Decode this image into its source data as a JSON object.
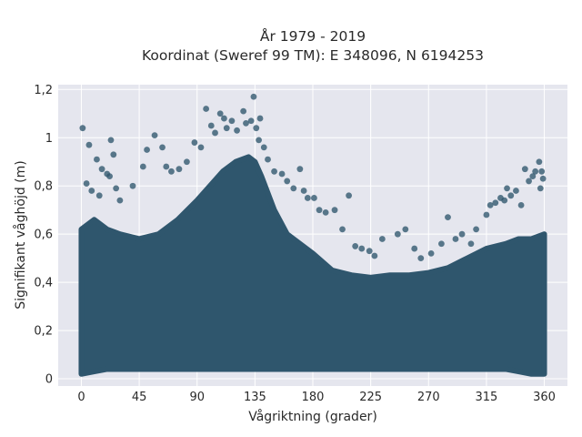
{
  "chart_data": {
    "type": "scatter",
    "title": [
      "År 1979 - 2019",
      "Koordinat (Sweref 99 TM): E 348096, N 6194253"
    ],
    "xlabel": "Vågriktning (grader)",
    "ylabel": "Signifikant våghöjd (m)",
    "xlim": [
      -18,
      378
    ],
    "ylim": [
      -0.03,
      1.22
    ],
    "xticks": [
      0,
      45,
      90,
      135,
      180,
      225,
      270,
      315,
      360
    ],
    "xtick_labels": [
      "0",
      "45",
      "90",
      "135",
      "180",
      "225",
      "270",
      "315",
      "360"
    ],
    "yticks": [
      0,
      0.2,
      0.4,
      0.6,
      0.8,
      1,
      1.2
    ],
    "ytick_labels": [
      "0",
      "0,2",
      "0,4",
      "0,6",
      "0,8",
      "1",
      "1,2"
    ],
    "grid": true,
    "legend": false,
    "marker_color": "#2f566d",
    "background_color": "#e5e6ee",
    "envelope": {
      "x": [
        0,
        10,
        20,
        30,
        45,
        60,
        75,
        90,
        100,
        110,
        120,
        130,
        135,
        140,
        150,
        160,
        170,
        180,
        195,
        210,
        225,
        240,
        255,
        270,
        285,
        300,
        315,
        330,
        340,
        350,
        360
      ],
      "y_upper": [
        0.62,
        0.66,
        0.62,
        0.6,
        0.58,
        0.6,
        0.66,
        0.74,
        0.8,
        0.86,
        0.9,
        0.92,
        0.9,
        0.84,
        0.7,
        0.6,
        0.56,
        0.52,
        0.45,
        0.43,
        0.42,
        0.43,
        0.43,
        0.44,
        0.46,
        0.5,
        0.54,
        0.56,
        0.58,
        0.58,
        0.6
      ],
      "y_lower": [
        0.02,
        0.03,
        0.04,
        0.04,
        0.04,
        0.04,
        0.04,
        0.04,
        0.04,
        0.04,
        0.04,
        0.04,
        0.04,
        0.04,
        0.04,
        0.04,
        0.04,
        0.04,
        0.04,
        0.04,
        0.04,
        0.04,
        0.04,
        0.04,
        0.04,
        0.04,
        0.04,
        0.04,
        0.03,
        0.02,
        0.02
      ]
    },
    "points": [
      [
        1,
        1.04
      ],
      [
        6,
        0.97
      ],
      [
        12,
        0.91
      ],
      [
        16,
        0.87
      ],
      [
        20,
        0.85
      ],
      [
        22,
        0.84
      ],
      [
        23,
        0.99
      ],
      [
        25,
        0.93
      ],
      [
        4,
        0.81
      ],
      [
        8,
        0.78
      ],
      [
        14,
        0.76
      ],
      [
        27,
        0.79
      ],
      [
        30,
        0.74
      ],
      [
        40,
        0.8
      ],
      [
        48,
        0.88
      ],
      [
        51,
        0.95
      ],
      [
        57,
        1.01
      ],
      [
        63,
        0.96
      ],
      [
        66,
        0.88
      ],
      [
        70,
        0.86
      ],
      [
        76,
        0.87
      ],
      [
        82,
        0.9
      ],
      [
        88,
        0.98
      ],
      [
        93,
        0.96
      ],
      [
        97,
        1.12
      ],
      [
        101,
        1.05
      ],
      [
        104,
        1.02
      ],
      [
        108,
        1.1
      ],
      [
        111,
        1.08
      ],
      [
        113,
        1.04
      ],
      [
        117,
        1.07
      ],
      [
        121,
        1.03
      ],
      [
        126,
        1.11
      ],
      [
        128,
        1.06
      ],
      [
        132,
        1.07
      ],
      [
        134,
        1.17
      ],
      [
        136,
        1.04
      ],
      [
        139,
        1.08
      ],
      [
        138,
        0.99
      ],
      [
        142,
        0.96
      ],
      [
        145,
        0.91
      ],
      [
        150,
        0.86
      ],
      [
        156,
        0.85
      ],
      [
        160,
        0.82
      ],
      [
        165,
        0.79
      ],
      [
        170,
        0.87
      ],
      [
        173,
        0.78
      ],
      [
        176,
        0.75
      ],
      [
        181,
        0.75
      ],
      [
        185,
        0.7
      ],
      [
        190,
        0.69
      ],
      [
        197,
        0.7
      ],
      [
        203,
        0.62
      ],
      [
        208,
        0.76
      ],
      [
        213,
        0.55
      ],
      [
        218,
        0.54
      ],
      [
        224,
        0.53
      ],
      [
        228,
        0.51
      ],
      [
        234,
        0.58
      ],
      [
        246,
        0.6
      ],
      [
        252,
        0.62
      ],
      [
        259,
        0.54
      ],
      [
        264,
        0.5
      ],
      [
        272,
        0.52
      ],
      [
        280,
        0.56
      ],
      [
        285,
        0.67
      ],
      [
        291,
        0.58
      ],
      [
        296,
        0.6
      ],
      [
        303,
        0.56
      ],
      [
        307,
        0.62
      ],
      [
        315,
        0.68
      ],
      [
        318,
        0.72
      ],
      [
        322,
        0.73
      ],
      [
        326,
        0.75
      ],
      [
        329,
        0.74
      ],
      [
        331,
        0.79
      ],
      [
        334,
        0.76
      ],
      [
        338,
        0.78
      ],
      [
        342,
        0.72
      ],
      [
        345,
        0.87
      ],
      [
        348,
        0.82
      ],
      [
        351,
        0.84
      ],
      [
        353,
        0.86
      ],
      [
        356,
        0.9
      ],
      [
        358,
        0.86
      ],
      [
        359,
        0.83
      ],
      [
        357,
        0.79
      ]
    ]
  }
}
